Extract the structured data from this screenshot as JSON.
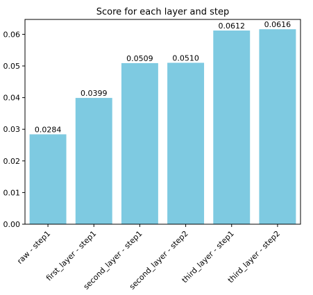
{
  "chart_data": {
    "type": "bar",
    "title": "Score for each layer and step",
    "xlabel": "",
    "ylabel": "",
    "categories": [
      "raw - step1",
      "first_layer - step1",
      "second_layer - step1",
      "second_layer - step2",
      "third_layer - step1",
      "third_layer - step2"
    ],
    "values": [
      0.0284,
      0.0399,
      0.0509,
      0.051,
      0.0612,
      0.0616
    ],
    "value_labels": [
      "0.0284",
      "0.0399",
      "0.0509",
      "0.0510",
      "0.0612",
      "0.0616"
    ],
    "ylim": [
      0,
      0.0647
    ],
    "yticks": [
      0,
      0.01,
      0.02,
      0.03,
      0.04,
      0.05,
      0.06
    ],
    "ytick_labels": [
      "0.00",
      "0.01",
      "0.02",
      "0.03",
      "0.04",
      "0.05",
      "0.06"
    ],
    "grid": false,
    "bar_color": "#7ecae1"
  }
}
